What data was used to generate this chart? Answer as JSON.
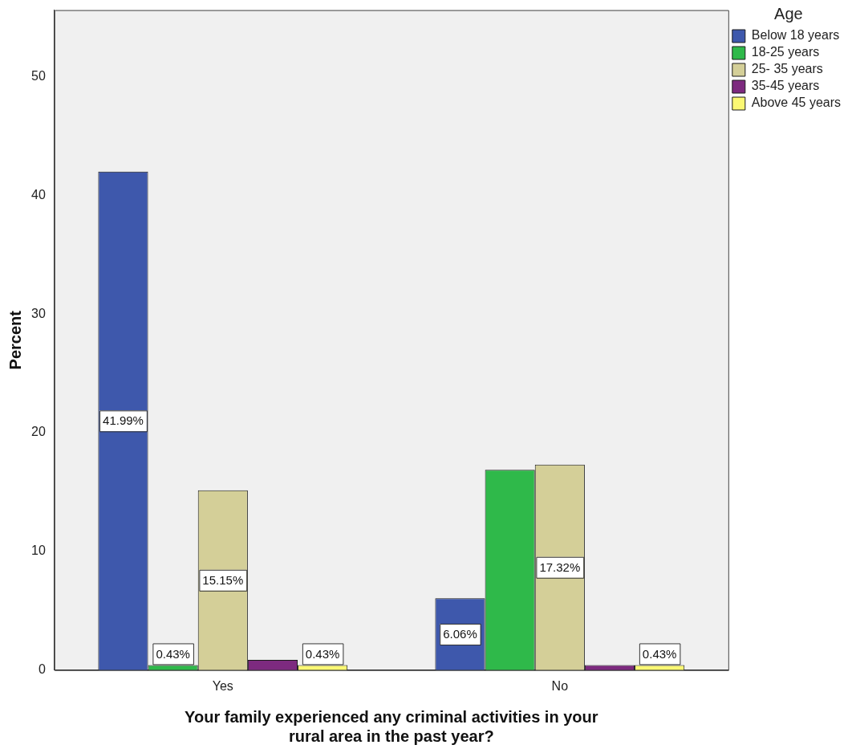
{
  "chart_data": {
    "type": "bar",
    "xlabel": "Your family experienced any criminal activities in your rural area in the past year?",
    "ylabel": "Percent",
    "legend_title": "Age",
    "categories": [
      "Yes",
      "No"
    ],
    "series": [
      {
        "name": "Below 18 years",
        "color": "#3e58ac",
        "values": [
          41.99,
          6.06
        ],
        "value_labels": [
          "41.99%",
          "6.06%"
        ]
      },
      {
        "name": "18-25 years",
        "color": "#2fb94a",
        "values": [
          0.43,
          16.88
        ],
        "value_labels": [
          "0.43%",
          null
        ]
      },
      {
        "name": "25- 35 years",
        "color": "#d4cf98",
        "values": [
          15.15,
          17.32
        ],
        "value_labels": [
          "15.15%",
          "17.32%"
        ]
      },
      {
        "name": "35-45 years",
        "color": "#7d2a7f",
        "values": [
          0.87,
          0.43
        ],
        "value_labels": [
          null,
          null
        ]
      },
      {
        "name": "Above 45 years",
        "color": "#fbf873",
        "values": [
          0.43,
          0.43
        ],
        "value_labels": [
          "0.43%",
          "0.43%"
        ]
      }
    ],
    "ylim": [
      0,
      55.6
    ],
    "yticks": [
      0,
      10,
      20,
      30,
      40,
      50
    ],
    "grid": false,
    "legend": "top right"
  }
}
